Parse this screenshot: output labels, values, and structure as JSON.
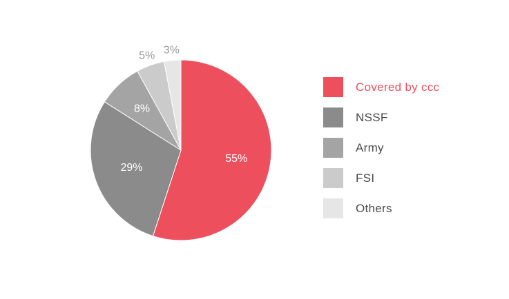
{
  "chart_data": {
    "type": "pie",
    "title": "",
    "slices": [
      {
        "label": "Covered by ccc",
        "value": 55,
        "display": "55%",
        "color": "#ee4f5d"
      },
      {
        "label": "NSSF",
        "value": 29,
        "display": "29%",
        "color": "#8c8b8b"
      },
      {
        "label": "Army",
        "value": 8,
        "display": "8%",
        "color": "#a5a4a4"
      },
      {
        "label": "FSI",
        "value": 5,
        "display": "5%",
        "color": "#cbcbcb"
      },
      {
        "label": "Others",
        "value": 3,
        "display": "3%",
        "color": "#e6e6e6"
      }
    ],
    "legend_position": "right",
    "highlight_color": "#ee4f5d",
    "label_text_color": "#ffffff",
    "outside_label_color": "#9a9a9a"
  },
  "legend": {
    "items": [
      {
        "label": "Covered by ccc",
        "color": "#ee4f5d",
        "text_color": "#ee4f5d"
      },
      {
        "label": "NSSF",
        "color": "#8c8b8b",
        "text_color": "#4a4a4a"
      },
      {
        "label": "Army",
        "color": "#a5a4a4",
        "text_color": "#4a4a4a"
      },
      {
        "label": "FSI",
        "color": "#cbcbcb",
        "text_color": "#4a4a4a"
      },
      {
        "label": "Others",
        "color": "#e6e6e6",
        "text_color": "#4a4a4a"
      }
    ]
  }
}
